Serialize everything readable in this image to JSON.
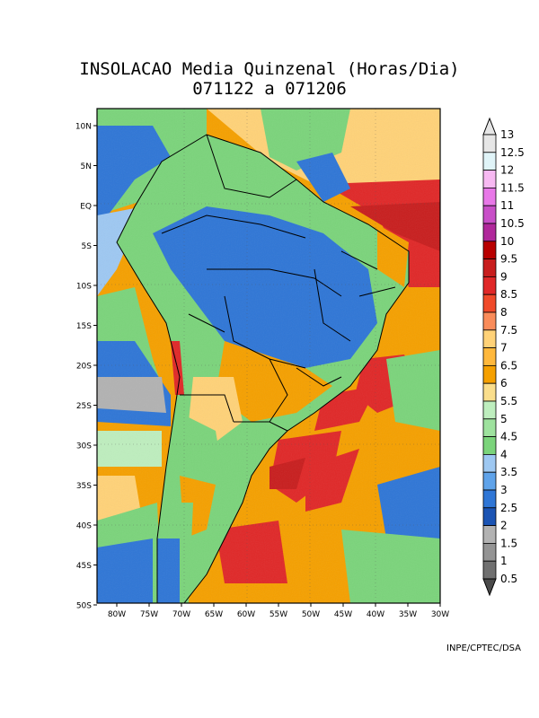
{
  "title": {
    "line1": "INSOLACAO Media Quinzenal  (Horas/Dia)",
    "line2": "071122   a   071206"
  },
  "axes": {
    "lat_labels": [
      "10N",
      "5N",
      "EQ",
      "5S",
      "10S",
      "15S",
      "20S",
      "25S",
      "30S",
      "35S",
      "40S",
      "45S",
      "50S"
    ],
    "lon_labels": [
      "80W",
      "75W",
      "70W",
      "65W",
      "60W",
      "55W",
      "50W",
      "45W",
      "40W",
      "35W",
      "30W"
    ]
  },
  "colorbar": {
    "labels": [
      "13",
      "12.5",
      "12",
      "11.5",
      "11",
      "10.5",
      "10",
      "9.5",
      "9",
      "8.5",
      "8",
      "7.5",
      "7",
      "6.5",
      "6",
      "5.5",
      "5",
      "4.5",
      "4",
      "3.5",
      "3",
      "2.5",
      "2",
      "1.5",
      "1",
      "0.5"
    ],
    "colors": [
      "#e6e6e6",
      "#e0f4f8",
      "#f7b9f2",
      "#e878e8",
      "#c84fc8",
      "#b0289b",
      "#b80000",
      "#c81e1e",
      "#e02828",
      "#f04a2a",
      "#fa8c5a",
      "#ffd278",
      "#ffb83c",
      "#f5a000",
      "#fade8c",
      "#beeebe",
      "#9ee29e",
      "#7bd47b",
      "#9ec8f2",
      "#5fa3ea",
      "#2f76d6",
      "#1b54b4",
      "#b2b2b2",
      "#949494",
      "#707070",
      "#4a4a4a"
    ]
  },
  "legend_colors": {
    "ocean_background": "#f5a000",
    "land_low": "#2f76d6",
    "land_mid": "#7bd47b",
    "high": "#e02828",
    "clouds": "#9ec8f2"
  },
  "credit": "INPE/CPTEC/DSA"
}
